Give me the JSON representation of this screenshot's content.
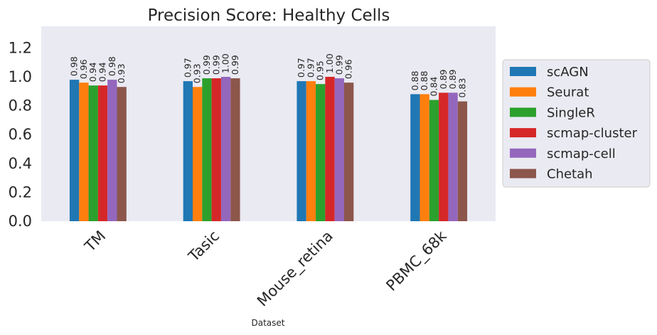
{
  "chart_data": {
    "type": "bar",
    "title": "Precision Score: Healthy Cells",
    "xlabel": "Dataset",
    "ylabel": "",
    "ylim": [
      0,
      1.35
    ],
    "yticks": [
      "0.0",
      "0.2",
      "0.4",
      "0.6",
      "0.8",
      "1.0",
      "1.2"
    ],
    "categories": [
      "TM",
      "Tasic",
      "Mouse_retina",
      "PBMC_68k"
    ],
    "grid": false,
    "legend_position": "right",
    "series": [
      {
        "name": "scAGN",
        "color": "#1f77b4",
        "values": [
          0.98,
          0.97,
          0.97,
          0.88
        ],
        "labels": [
          "0.98",
          "0.97",
          "0.97",
          "0.88"
        ]
      },
      {
        "name": "Seurat",
        "color": "#ff7f0e",
        "values": [
          0.96,
          0.93,
          0.97,
          0.88
        ],
        "labels": [
          "0.96",
          "0.93",
          "0.97",
          "0.88"
        ]
      },
      {
        "name": "SingleR",
        "color": "#2ca02c",
        "values": [
          0.94,
          0.99,
          0.95,
          0.84
        ],
        "labels": [
          "0.94",
          "0.99",
          "0.95",
          "0.84"
        ]
      },
      {
        "name": "scmap-cluster",
        "color": "#d62728",
        "values": [
          0.94,
          0.99,
          1.0,
          0.89
        ],
        "labels": [
          "0.94",
          "0.99",
          "1.00",
          "0.89"
        ]
      },
      {
        "name": "scmap-cell",
        "color": "#9467bd",
        "values": [
          0.98,
          1.0,
          0.99,
          0.89
        ],
        "labels": [
          "0.98",
          "1.00",
          "0.99",
          "0.89"
        ]
      },
      {
        "name": "Chetah",
        "color": "#8c564b",
        "values": [
          0.93,
          0.99,
          0.96,
          0.83
        ],
        "labels": [
          "0.93",
          "0.99",
          "0.96",
          "0.83"
        ]
      }
    ]
  }
}
